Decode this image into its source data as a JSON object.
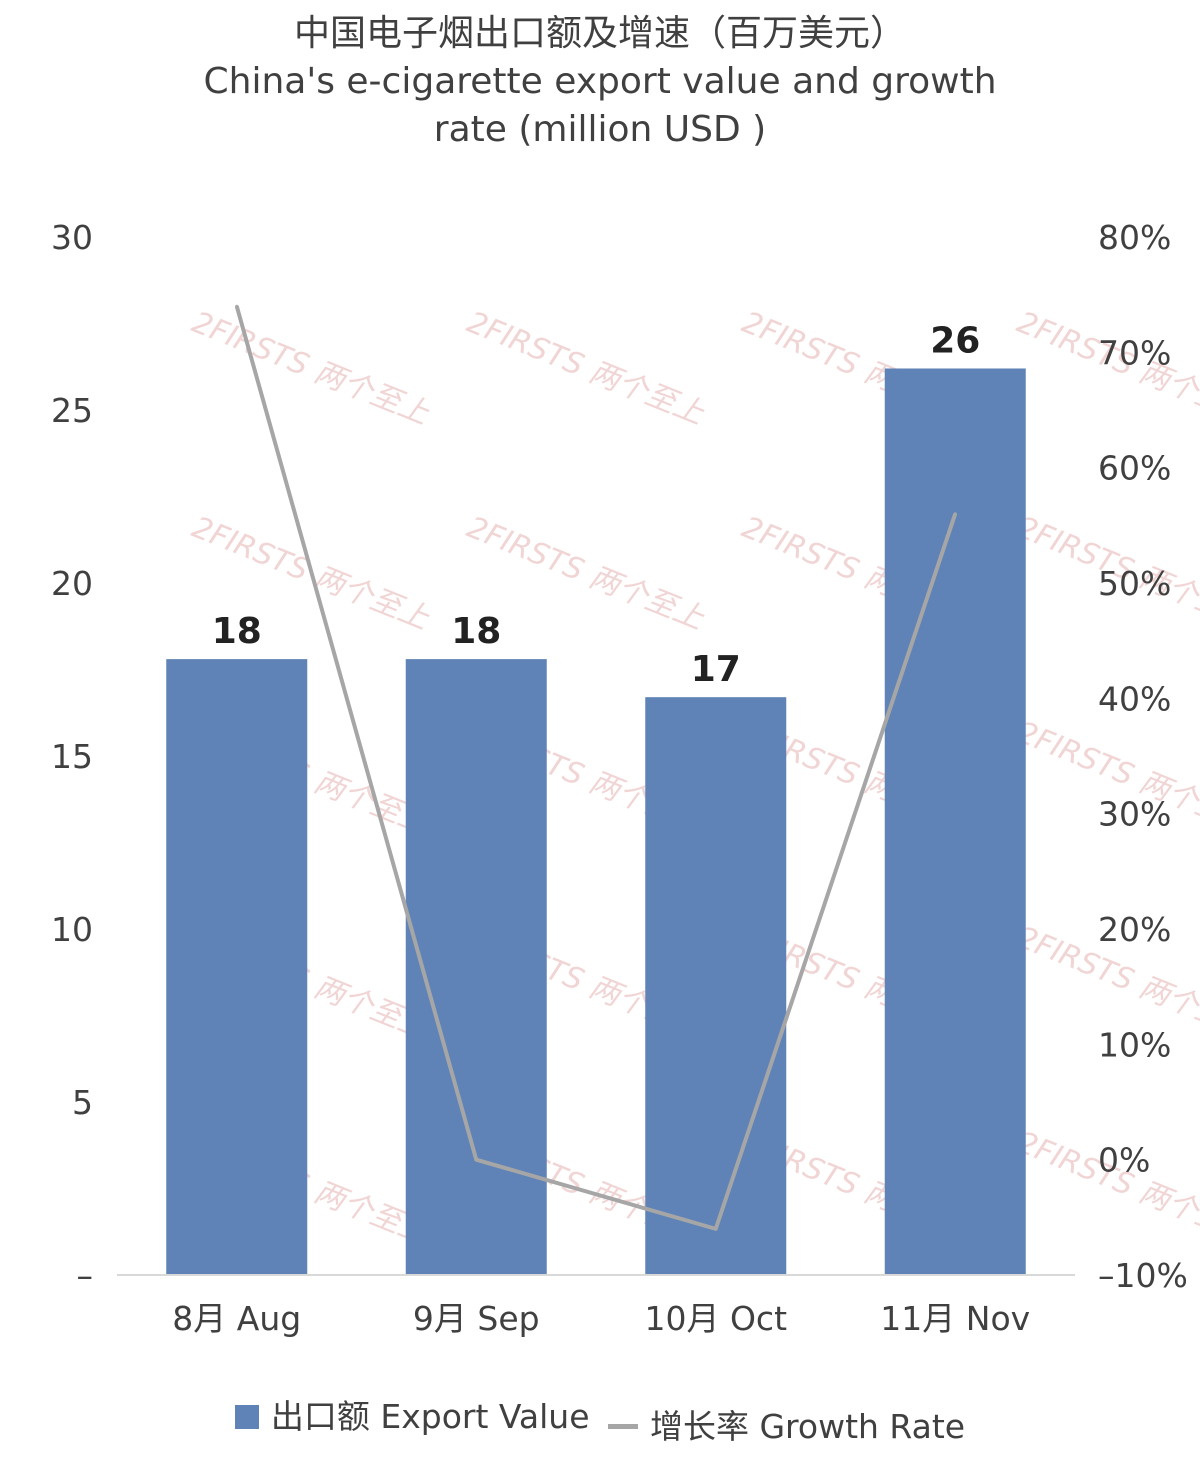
{
  "chart_data": {
    "type": "bar",
    "title": "中国电子烟出口额及增速（百万美元）",
    "subtitle_line1": "China's e-cigarette export value and growth",
    "subtitle_line2": "rate (million USD )",
    "categories": [
      "8月 Aug",
      "9月 Sep",
      "10月 Oct",
      "11月 Nov"
    ],
    "series": [
      {
        "name": "出口额 Export Value",
        "type": "bar",
        "axis": "left",
        "values": [
          17.8,
          17.8,
          16.7,
          26.2
        ],
        "labels": [
          "18",
          "18",
          "17",
          "26"
        ],
        "color": "#5f83b6"
      },
      {
        "name": "增长率 Growth Rate",
        "type": "line",
        "axis": "right",
        "values": [
          74,
          0,
          -6,
          56
        ],
        "color": "#a6a6a6"
      }
    ],
    "y_left": {
      "ylim": [
        0,
        30
      ],
      "ticks": [
        "–",
        "5",
        "10",
        "15",
        "20",
        "25",
        "30"
      ]
    },
    "y_right": {
      "ylim": [
        -10,
        80
      ],
      "ticks": [
        "–10%",
        "0%",
        "10%",
        "20%",
        "30%",
        "40%",
        "50%",
        "60%",
        "70%",
        "80%"
      ]
    },
    "grid": false,
    "legend_position": "bottom",
    "watermark": "2FIRSTS 两个至上"
  },
  "legend": {
    "bar_label": "出口额 Export Value",
    "line_label": "增长率 Growth Rate"
  }
}
